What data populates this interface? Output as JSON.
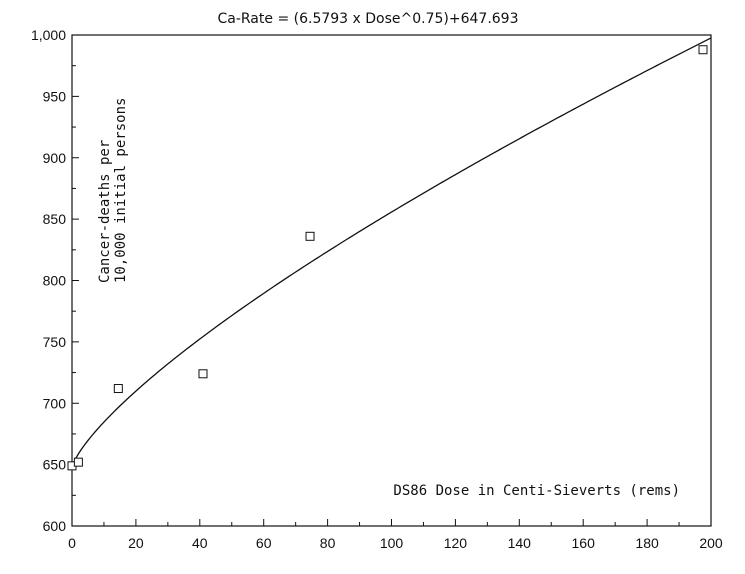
{
  "chart_data": {
    "type": "scatter",
    "title": "Ca-Rate = (6.5793 x Dose^0.75)+647.693",
    "xlabel": "DS86 Dose in Centi-Sieverts (rems)",
    "ylabel_lines": [
      "Cancer-deaths per",
      "10,000 initial persons"
    ],
    "xlim": [
      0,
      200
    ],
    "ylim": [
      600,
      1000
    ],
    "x_ticks": [
      0,
      20,
      40,
      60,
      80,
      100,
      120,
      140,
      160,
      180,
      200
    ],
    "x_tick_labels": [
      "0",
      "20",
      "40",
      "60",
      "80",
      "100",
      "120",
      "140",
      "160",
      "180",
      "200"
    ],
    "y_ticks": [
      600,
      650,
      700,
      750,
      800,
      850,
      900,
      950,
      1000
    ],
    "y_tick_labels": [
      "600",
      "650",
      "700",
      "750",
      "800",
      "850",
      "900",
      "950",
      "1,000"
    ],
    "points": [
      {
        "x": 0,
        "y": 649
      },
      {
        "x": 2,
        "y": 652
      },
      {
        "x": 14.5,
        "y": 712
      },
      {
        "x": 41,
        "y": 724
      },
      {
        "x": 74.5,
        "y": 836
      },
      {
        "x": 197.5,
        "y": 988
      }
    ],
    "fit": {
      "a": 6.5793,
      "exponent": 0.75,
      "b": 647.693
    },
    "grid": false,
    "legend": "none"
  }
}
